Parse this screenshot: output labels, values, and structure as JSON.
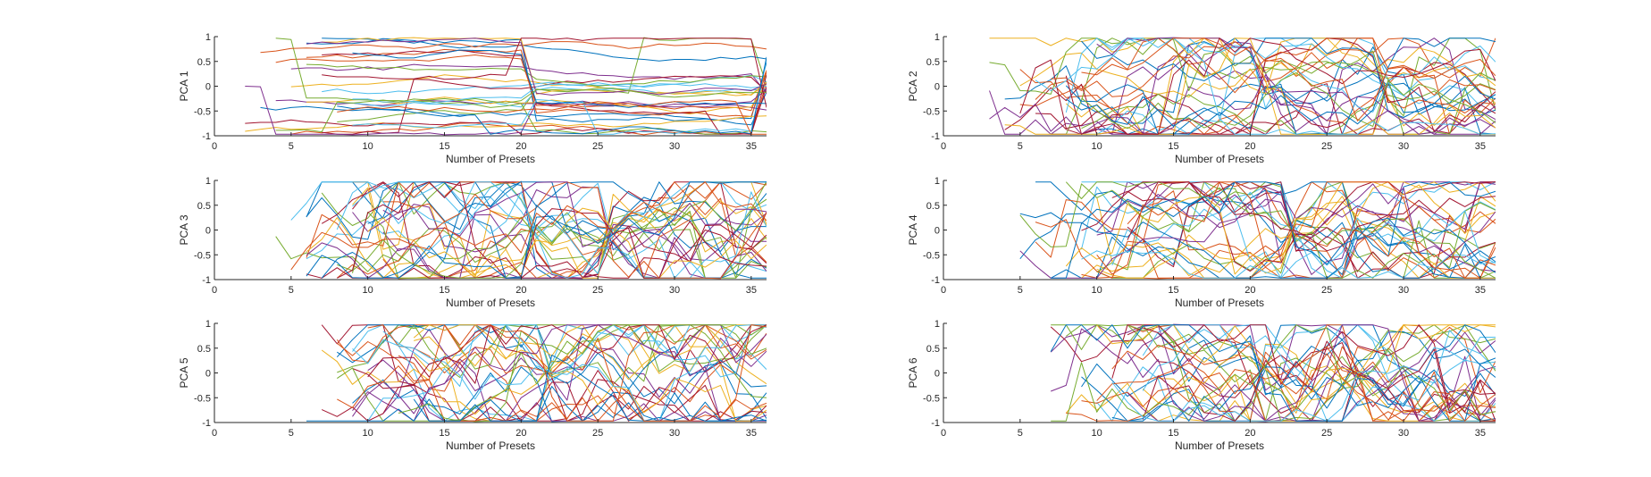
{
  "figure": {
    "background": "#ffffff",
    "axis_color": "#262626",
    "palette": [
      "#0072BD",
      "#D95319",
      "#EDB120",
      "#7E2F8E",
      "#77AC30",
      "#4DBEEE",
      "#A2142F"
    ]
  },
  "chart_data": [
    {
      "type": "line",
      "xlabel": "Number of Presets",
      "ylabel": "PCA 1",
      "xlim": [
        0,
        36
      ],
      "ylim": [
        -1,
        1
      ],
      "xticks": [
        0,
        5,
        10,
        15,
        20,
        25,
        30,
        35
      ],
      "yticks": [
        -1,
        -0.5,
        0,
        0.5,
        1
      ],
      "xtick_labels": [
        "0",
        "5",
        "10",
        "15",
        "20",
        "25",
        "30",
        "35"
      ],
      "ytick_labels": [
        "-1",
        "-0.5",
        "0",
        "0.5",
        "1"
      ],
      "series_count": 30,
      "x_start": 2,
      "x_end": 36,
      "seed": 11,
      "volatility": 0.06,
      "jump_points": [
        20,
        35
      ],
      "series_note_count_estimated": true
    },
    {
      "type": "line",
      "xlabel": "Number of Presets",
      "ylabel": "PCA 2",
      "xlim": [
        0,
        36
      ],
      "ylim": [
        -1,
        1
      ],
      "xticks": [
        0,
        5,
        10,
        15,
        20,
        25,
        30,
        35
      ],
      "yticks": [
        -1,
        -0.5,
        0,
        0.5,
        1
      ],
      "xtick_labels": [
        "0",
        "5",
        "10",
        "15",
        "20",
        "25",
        "30",
        "35"
      ],
      "ytick_labels": [
        "-1",
        "-0.5",
        "0",
        "0.5",
        "1"
      ],
      "series_count": 30,
      "x_start": 3,
      "x_end": 36,
      "seed": 23,
      "volatility": 0.35,
      "jump_points": [
        20,
        28
      ],
      "series_note_count_estimated": true
    },
    {
      "type": "line",
      "xlabel": "Number of Presets",
      "ylabel": "PCA 3",
      "xlim": [
        0,
        36
      ],
      "ylim": [
        -1,
        1
      ],
      "xticks": [
        0,
        5,
        10,
        15,
        20,
        25,
        30,
        35
      ],
      "yticks": [
        -1,
        -0.5,
        0,
        0.5,
        1
      ],
      "xtick_labels": [
        "0",
        "5",
        "10",
        "15",
        "20",
        "25",
        "30",
        "35"
      ],
      "ytick_labels": [
        "-1",
        "-0.5",
        "0",
        "0.5",
        "1"
      ],
      "series_count": 30,
      "x_start": 4,
      "x_end": 36,
      "seed": 37,
      "volatility": 0.45,
      "jump_points": [
        20,
        25
      ],
      "series_note_count_estimated": true
    },
    {
      "type": "line",
      "xlabel": "Number of Presets",
      "ylabel": "PCA 4",
      "xlim": [
        0,
        36
      ],
      "ylim": [
        -1,
        1
      ],
      "xticks": [
        0,
        5,
        10,
        15,
        20,
        25,
        30,
        35
      ],
      "yticks": [
        -1,
        -0.5,
        0,
        0.5,
        1
      ],
      "xtick_labels": [
        "0",
        "5",
        "10",
        "15",
        "20",
        "25",
        "30",
        "35"
      ],
      "ytick_labels": [
        "-1",
        "-0.5",
        "0",
        "0.5",
        "1"
      ],
      "series_count": 30,
      "x_start": 5,
      "x_end": 36,
      "seed": 53,
      "volatility": 0.4,
      "jump_points": [
        22,
        26
      ],
      "series_note_count_estimated": true
    },
    {
      "type": "line",
      "xlabel": "Number of Presets",
      "ylabel": "PCA 5",
      "xlim": [
        0,
        36
      ],
      "ylim": [
        -1,
        1
      ],
      "xticks": [
        0,
        5,
        10,
        15,
        20,
        25,
        30,
        35
      ],
      "yticks": [
        -1,
        -0.5,
        0,
        0.5,
        1
      ],
      "xtick_labels": [
        "0",
        "5",
        "10",
        "15",
        "20",
        "25",
        "30",
        "35"
      ],
      "ytick_labels": [
        "-1",
        "-0.5",
        "0",
        "0.5",
        "1"
      ],
      "series_count": 30,
      "x_start": 6,
      "x_end": 36,
      "seed": 71,
      "volatility": 0.5,
      "jump_points": [
        21
      ],
      "series_note_count_estimated": true
    },
    {
      "type": "line",
      "xlabel": "Number of Presets",
      "ylabel": "PCA 6",
      "xlim": [
        0,
        36
      ],
      "ylim": [
        -1,
        1
      ],
      "xticks": [
        0,
        5,
        10,
        15,
        20,
        25,
        30,
        35
      ],
      "yticks": [
        -1,
        -0.5,
        0,
        0.5,
        1
      ],
      "xtick_labels": [
        "0",
        "5",
        "10",
        "15",
        "20",
        "25",
        "30",
        "35"
      ],
      "ytick_labels": [
        "-1",
        "-0.5",
        "0",
        "0.5",
        "1"
      ],
      "series_count": 30,
      "x_start": 7,
      "x_end": 36,
      "seed": 89,
      "volatility": 0.5,
      "jump_points": [
        20,
        26
      ],
      "series_note_count_estimated": true
    }
  ]
}
